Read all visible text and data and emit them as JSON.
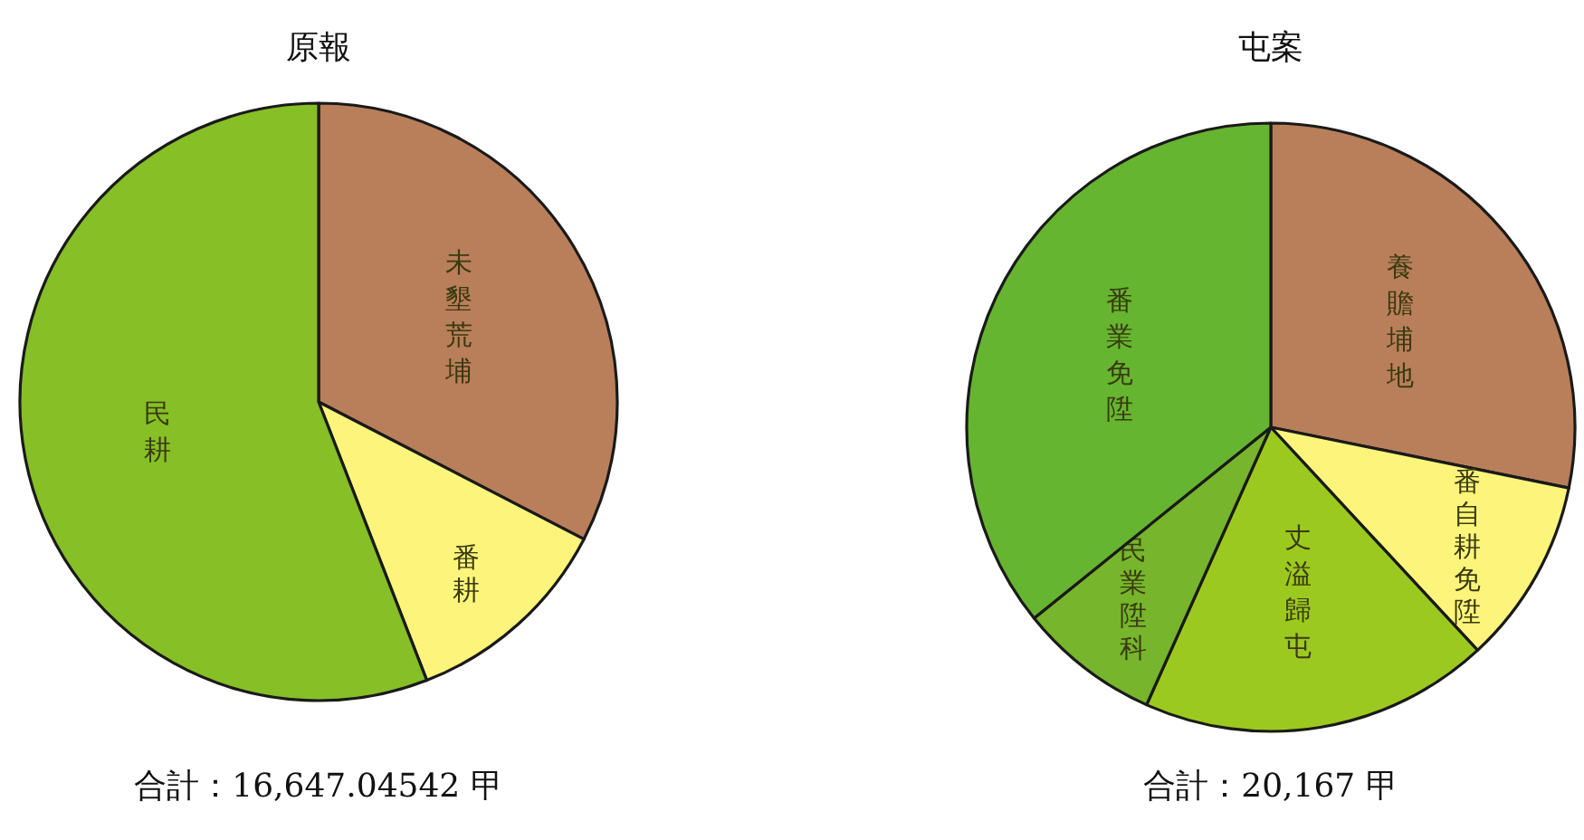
{
  "chart_data": [
    {
      "type": "pie",
      "title": "原報",
      "categories": [
        "未墾荒埔",
        "番耕",
        "民耕"
      ],
      "values": [
        32.6,
        11.5,
        55.9
      ],
      "colors": [
        "#b97f5a",
        "#fdf57b",
        "#86bf26"
      ],
      "annotations": [
        "合計：16,647.04542 甲"
      ]
    },
    {
      "type": "pie",
      "title": "屯案",
      "categories": [
        "養贍埔地",
        "番自耕免陞",
        "丈溢歸屯",
        "民業陞科",
        "番業免陞"
      ],
      "values": [
        28.2,
        9.9,
        18.6,
        7.5,
        35.8
      ],
      "colors": [
        "#b97f5a",
        "#fdf57b",
        "#9cc91f",
        "#76b52c",
        "#66b530"
      ],
      "annotations": [
        "合計：20,167 甲"
      ]
    }
  ]
}
